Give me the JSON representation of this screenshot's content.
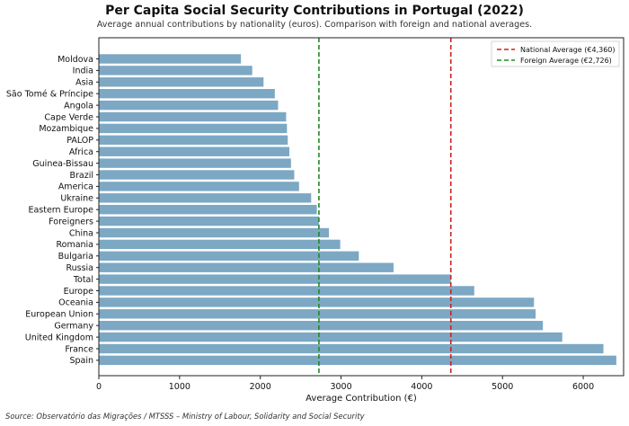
{
  "chart_data": {
    "type": "bar",
    "orientation": "horizontal",
    "title": "Per Capita Social Security Contributions in Portugal (2022)",
    "subtitle": "Average annual contributions by nationality (euros). Comparison with foreign and national averages.",
    "xlabel": "Average Contribution (€)",
    "ylabel": "",
    "xlim": [
      0,
      6500
    ],
    "xticks": [
      0,
      1000,
      2000,
      3000,
      4000,
      5000,
      6000
    ],
    "grid": false,
    "legend_position": "top-right",
    "bar_color": "#7ca8c4",
    "categories": [
      "Moldova",
      "India",
      "Asia",
      "São Tomé & Príncipe",
      "Angola",
      "Cape Verde",
      "Mozambique",
      "PALOP",
      "Africa",
      "Guinea-Bissau",
      "Brazil",
      "America",
      "Ukraine",
      "Eastern Europe",
      "Foreigners",
      "China",
      "Romania",
      "Bulgaria",
      "Russia",
      "Total",
      "Europe",
      "Oceania",
      "European Union",
      "Germany",
      "United Kingdom",
      "France",
      "Spain"
    ],
    "values": [
      1760,
      1900,
      2040,
      2180,
      2220,
      2320,
      2330,
      2340,
      2360,
      2380,
      2420,
      2480,
      2630,
      2700,
      2726,
      2850,
      2990,
      3220,
      3650,
      4360,
      4650,
      5390,
      5410,
      5500,
      5740,
      6250,
      6410
    ],
    "reference_lines": [
      {
        "name": "National Average (€4,360)",
        "value": 4360,
        "color": "#cc2222"
      },
      {
        "name": "Foreign Average (€2,726)",
        "value": 2726,
        "color": "#228822"
      }
    ],
    "source": "Source: Observatório das Migrações / MTSSS – Ministry of Labour, Solidarity and Social Security"
  }
}
